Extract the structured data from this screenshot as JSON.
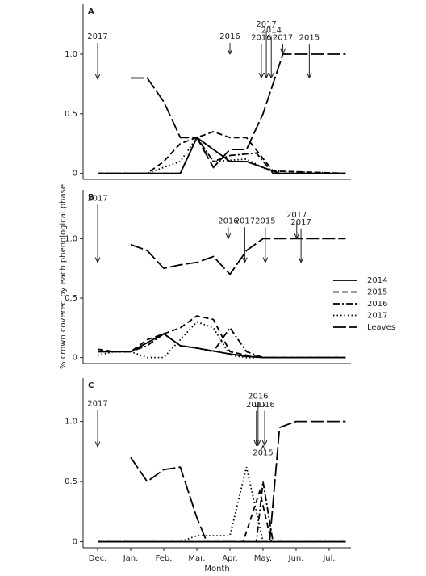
{
  "chart_data": [
    {
      "type": "line",
      "label": "A",
      "xlim": [
        -0.44,
        7.66
      ],
      "ylim": [
        -0.05,
        1.42
      ],
      "yticks": [
        0,
        0.5,
        {
          "value": 1,
          "label": "1.0"
        }
      ],
      "annotations": [
        {
          "text": "2017",
          "x": 0,
          "y": 0.79,
          "y_text": 1.15
        },
        {
          "text": "2016",
          "x": 4.0,
          "y": 1.0,
          "y_text": 1.15
        },
        {
          "text": "2016",
          "x": 4.95,
          "y": 0.8,
          "y_text": 1.14
        },
        {
          "text": "2017",
          "x": 5.1,
          "y": 0.8,
          "y_text": 1.25
        },
        {
          "text": "2014",
          "x": 5.25,
          "y": 0.8,
          "y_text": 1.2
        },
        {
          "text": "2017",
          "x": 5.6,
          "y": 1.0,
          "y_text": 1.14
        },
        {
          "text": "2015",
          "x": 6.4,
          "y": 0.8,
          "y_text": 1.14
        }
      ],
      "series": [
        {
          "name": "2014",
          "color": "#000",
          "dash": "solid",
          "x": [
            0,
            2.5,
            3.0,
            4.0,
            4.5,
            5.5,
            7.5
          ],
          "values": [
            0,
            0,
            0.3,
            0.1,
            0.1,
            0,
            0
          ]
        },
        {
          "name": "2015",
          "color": "#000",
          "dash": "dashed",
          "x": [
            0,
            1.5,
            2.0,
            2.5,
            3.0,
            3.5,
            4.0,
            4.5,
            5.3,
            7.5
          ],
          "values": [
            0,
            0,
            0.1,
            0.25,
            0.3,
            0.35,
            0.3,
            0.3,
            0.02,
            0
          ]
        },
        {
          "name": "2016",
          "color": "#000",
          "dash": "dashdot",
          "x": [
            0,
            2.5,
            3.0,
            3.5,
            4.0,
            4.8,
            5.3,
            7.5
          ],
          "values": [
            0,
            0,
            0.3,
            0.1,
            0.15,
            0.17,
            0,
            0
          ]
        },
        {
          "name": "2017",
          "color": "#000",
          "dash": "dotted",
          "x": [
            0,
            1.5,
            2.0,
            2.5,
            3.0,
            3.5,
            4.5,
            5.2,
            7.5
          ],
          "values": [
            0,
            0,
            0.05,
            0.1,
            0.3,
            0.1,
            0.12,
            0.02,
            0
          ]
        },
        {
          "name": "Leaves",
          "color": "#000",
          "dash": "longdash",
          "x": [
            1.0,
            1.5,
            2.0,
            2.5,
            3.0,
            3.5,
            4.0,
            4.5,
            5.0,
            5.6,
            7.5
          ],
          "values": [
            0.8,
            0.8,
            0.6,
            0.3,
            0.3,
            0.05,
            0.2,
            0.2,
            0.5,
            1.0,
            1.0
          ]
        }
      ]
    },
    {
      "type": "line",
      "label": "B",
      "y_label": "% crown covered by each phenological phase",
      "legend": "right",
      "xlim": [
        -0.44,
        7.66
      ],
      "ylim": [
        -0.05,
        1.41
      ],
      "yticks": [
        0,
        0.5,
        {
          "value": 1,
          "label": "1.0"
        }
      ],
      "annotations": [
        {
          "text": "2017",
          "x": 0,
          "y": 0.8,
          "y_text": 1.34
        },
        {
          "text": "2016",
          "x": 3.95,
          "y": 1.0,
          "y_text": 1.15
        },
        {
          "text": "2017",
          "x": 4.45,
          "y": 0.8,
          "y_text": 1.15
        },
        {
          "text": "2015",
          "x": 5.07,
          "y": 0.8,
          "y_text": 1.15
        },
        {
          "text": "2017",
          "x": 6.02,
          "y": 1.0,
          "y_text": 1.2
        },
        {
          "text": "2017",
          "x": 6.15,
          "y": 0.8,
          "y_text": 1.14
        }
      ],
      "series": [
        {
          "name": "2014",
          "color": "#000",
          "dash": "solid",
          "x": [
            0,
            0.5,
            1.0,
            2.0,
            2.5,
            3.0,
            4.0,
            4.5,
            5.0,
            7.5
          ],
          "values": [
            0.05,
            0.05,
            0.05,
            0.2,
            0.1,
            0.08,
            0.03,
            0.01,
            0,
            0
          ]
        },
        {
          "name": "2015",
          "color": "#000",
          "dash": "dashed",
          "x": [
            0,
            0.5,
            1.0,
            1.5,
            2.0,
            2.5,
            3.0,
            3.5,
            4.0,
            4.5,
            5.0,
            7.5
          ],
          "values": [
            0.07,
            0.05,
            0.05,
            0.15,
            0.2,
            0.25,
            0.35,
            0.32,
            0.05,
            0.02,
            0,
            0
          ]
        },
        {
          "name": "2016",
          "color": "#000",
          "dash": "dashdot",
          "x": [
            0,
            0.5,
            1.0,
            1.5,
            2.0,
            2.5,
            3.0,
            3.5,
            4.0,
            4.5,
            5.0,
            7.5
          ],
          "values": [
            0.05,
            0.05,
            0.05,
            0.1,
            0.2,
            0.1,
            0.08,
            0.05,
            0.25,
            0.05,
            0,
            0
          ]
        },
        {
          "name": "2017",
          "color": "#000",
          "dash": "dotted",
          "x": [
            0,
            0.5,
            1.0,
            1.5,
            2.0,
            2.5,
            3.0,
            3.5,
            4.0,
            4.5,
            7.5
          ],
          "values": [
            0.02,
            0.05,
            0.05,
            0,
            0,
            0.15,
            0.3,
            0.25,
            0.02,
            0,
            0
          ]
        },
        {
          "name": "Leaves",
          "color": "#000",
          "dash": "longdash",
          "x": [
            1.0,
            1.5,
            2.0,
            2.5,
            3.0,
            3.5,
            4.0,
            4.5,
            5.0,
            7.5
          ],
          "values": [
            0.95,
            0.9,
            0.75,
            0.78,
            0.8,
            0.85,
            0.7,
            0.9,
            1.0,
            1.0
          ]
        }
      ]
    },
    {
      "type": "line",
      "label": "C",
      "x_label": "Month",
      "xlim": [
        -0.44,
        7.66
      ],
      "ylim": [
        -0.05,
        1.36
      ],
      "xticks": [
        {
          "value": 0,
          "label": "Dec."
        },
        {
          "value": 1,
          "label": "Jan."
        },
        {
          "value": 2,
          "label": "Feb."
        },
        {
          "value": 3,
          "label": "Mar."
        },
        {
          "value": 4,
          "label": "Apr."
        },
        {
          "value": 5,
          "label": "May."
        },
        {
          "value": 6,
          "label": "Jun."
        },
        {
          "value": 7,
          "label": "Jul."
        }
      ],
      "yticks": [
        0,
        0.5,
        {
          "value": 1,
          "label": "1.0"
        }
      ],
      "annotations": [
        {
          "text": "2017",
          "x": 0,
          "y": 0.79,
          "y_text": 1.15
        },
        {
          "text": "2016",
          "x": 4.85,
          "y": 0.8,
          "y_text": 1.21
        },
        {
          "text": "2017",
          "x": 4.8,
          "y": 0.8,
          "y_text": 1.14
        },
        {
          "text": "2016",
          "x": 5.05,
          "y": 0.8,
          "y_text": 1.14
        },
        {
          "text": "2015",
          "x": 5.0,
          "y": 0.8,
          "y_text": 0.74
        }
      ],
      "series": [
        {
          "name": "2014",
          "color": "#000",
          "dash": "solid",
          "x": [
            0,
            7.5
          ],
          "values": [
            0,
            0
          ]
        },
        {
          "name": "2015",
          "color": "#000",
          "dash": "dashed",
          "x": [
            0,
            4.4,
            4.9,
            5.25,
            7.5
          ],
          "values": [
            0,
            0,
            0.42,
            0,
            0
          ]
        },
        {
          "name": "2016",
          "color": "#000",
          "dash": "dashdot",
          "x": [
            0,
            4.8,
            5.0,
            5.3,
            7.5
          ],
          "values": [
            0,
            0,
            0.5,
            0,
            0
          ]
        },
        {
          "name": "2017",
          "color": "#000",
          "dash": "dotted",
          "x": [
            0,
            2.5,
            3.0,
            4.0,
            4.5,
            5.0,
            7.5
          ],
          "values": [
            0,
            0,
            0.05,
            0.05,
            0.62,
            0,
            0
          ]
        },
        {
          "name": "Leaves",
          "color": "#000",
          "dash": "longdash",
          "x": [
            1.0,
            1.5,
            2.0,
            2.5,
            3.0,
            3.3,
            5.2,
            5.5,
            6.0,
            7.5
          ],
          "values": [
            0.7,
            0.5,
            0.6,
            0.62,
            0.2,
            0,
            0,
            0.95,
            1.0,
            1.0
          ]
        }
      ]
    }
  ]
}
